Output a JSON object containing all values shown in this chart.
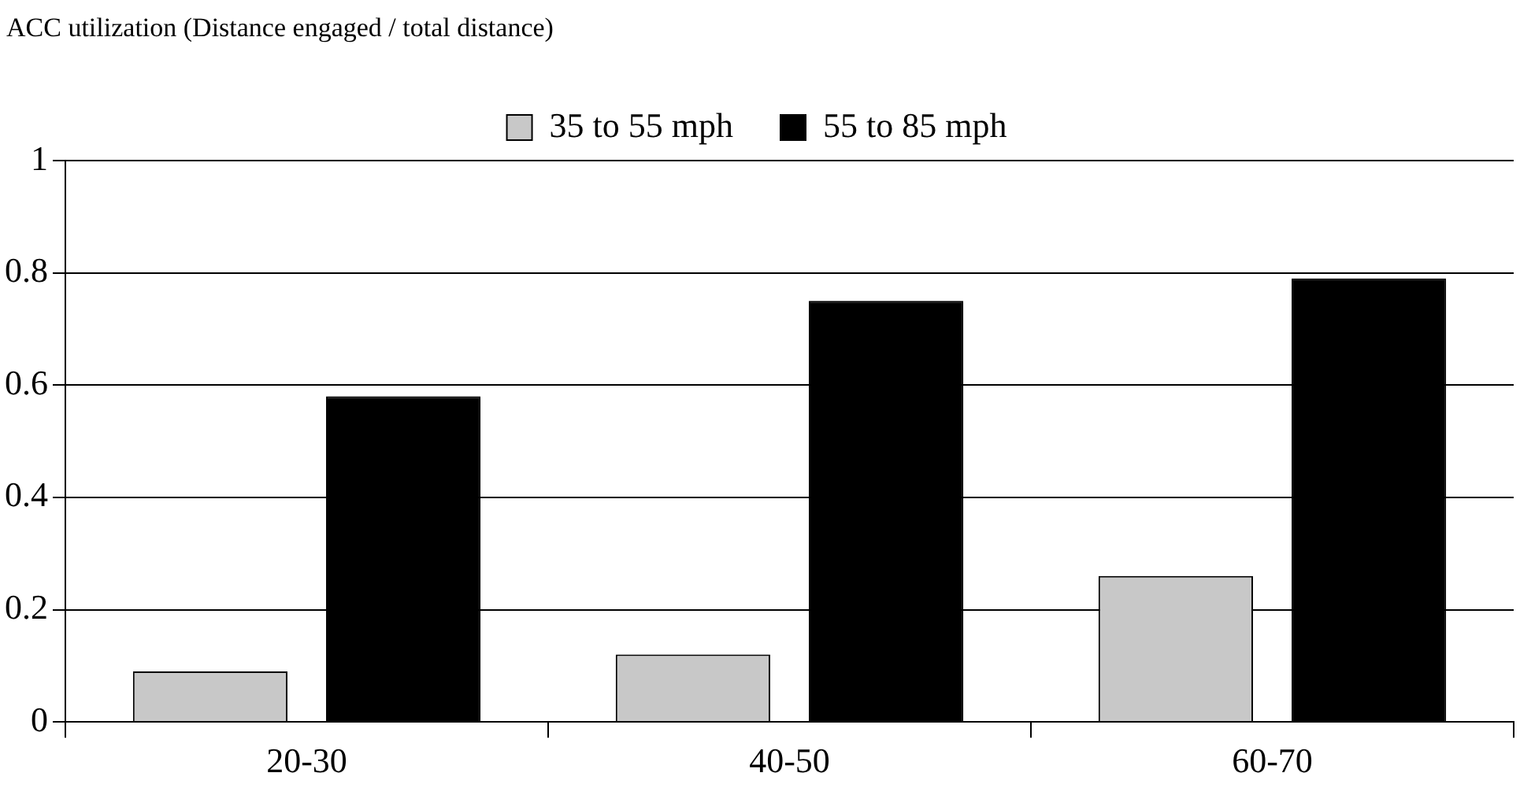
{
  "chart_data": {
    "type": "bar",
    "ylabel": "ACC utilization (Distance engaged / total distance)",
    "categories": [
      "20-30",
      "40-50",
      "60-70"
    ],
    "series": [
      {
        "name": "35 to 55 mph",
        "color": "#c8c8c8",
        "values": [
          0.09,
          0.12,
          0.26
        ]
      },
      {
        "name": "55 to 85 mph",
        "color": "#000000",
        "values": [
          0.58,
          0.75,
          0.79
        ]
      }
    ],
    "ylim": [
      0,
      1
    ],
    "yticks": [
      0,
      0.2,
      0.4,
      0.6,
      0.8,
      1
    ],
    "grid": "y",
    "legend": "top"
  }
}
